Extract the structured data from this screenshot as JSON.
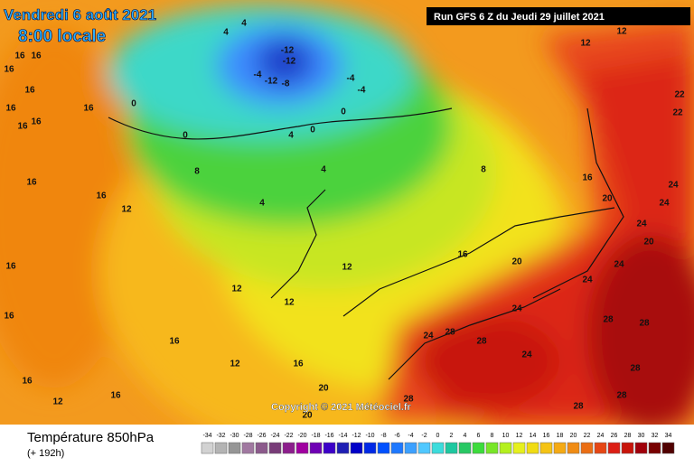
{
  "header": {
    "date": "Vendredi 6 août 2021",
    "time": "8:00 locale",
    "run": "Run GFS 6 Z du Jeudi 29 juillet 2021"
  },
  "copyright": "Copyright © 2021 Météociel.fr",
  "footer": {
    "title": "Température 850hPa",
    "lead": "(+ 192h)"
  },
  "scale": {
    "values": [
      -34,
      -32,
      -30,
      -28,
      -26,
      -24,
      -22,
      -20,
      -18,
      -16,
      -14,
      -12,
      -10,
      -8,
      -6,
      -4,
      -2,
      0,
      2,
      4,
      6,
      8,
      10,
      12,
      14,
      16,
      18,
      20,
      22,
      24,
      26,
      28,
      30,
      32,
      34
    ],
    "colors": [
      "#d2d2d2",
      "#b4b4b4",
      "#969696",
      "#a078a0",
      "#8c5a8c",
      "#783c78",
      "#8c1e8c",
      "#a000a0",
      "#6e00b4",
      "#3c00c8",
      "#1e1eb4",
      "#0000c8",
      "#0028e6",
      "#0050ff",
      "#1e78ff",
      "#3ca0ff",
      "#50c8ff",
      "#3cdcdc",
      "#1ec8a0",
      "#28c864",
      "#3cdc3c",
      "#78e628",
      "#b4f01e",
      "#e6f01e",
      "#f0dc14",
      "#f5c314",
      "#f5aa14",
      "#f08c14",
      "#eb6e14",
      "#e64614",
      "#dc1e14",
      "#c8140a",
      "#a0000a",
      "#780000",
      "#500000"
    ]
  },
  "contour_labels": [
    "16",
    "16",
    "16",
    "16",
    "16",
    "16",
    "16",
    "16",
    "16",
    "12",
    "16",
    "12",
    "12",
    "16",
    "16",
    "12",
    "16",
    "16",
    "16",
    "8",
    "4",
    "4",
    "4",
    "0",
    "-12",
    "-12",
    "-12",
    "-8",
    "-4",
    "-4",
    "-4",
    "0",
    "0",
    "0",
    "4",
    "4",
    "8",
    "16",
    "20",
    "20",
    "24",
    "24",
    "24",
    "24",
    "20",
    "24",
    "24",
    "24",
    "28",
    "28",
    "24",
    "28",
    "28",
    "28",
    "28",
    "28",
    "28",
    "20",
    "20",
    "12",
    "12",
    "22",
    "22",
    "16",
    "12",
    "16",
    "12"
  ]
}
